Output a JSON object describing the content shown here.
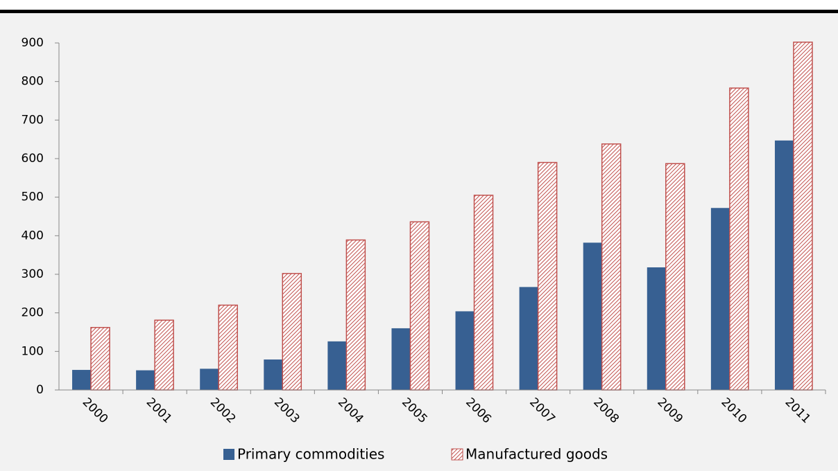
{
  "chart_data": {
    "type": "bar",
    "categories": [
      "2000",
      "2001",
      "2002",
      "2003",
      "2004",
      "2005",
      "2006",
      "2007",
      "2008",
      "2009",
      "2010",
      "2011"
    ],
    "series": [
      {
        "name": "Primary commodities",
        "color": "#376092",
        "hatch": false,
        "values": [
          52,
          51,
          55,
          79,
          126,
          160,
          204,
          267,
          382,
          318,
          472,
          647
        ]
      },
      {
        "name": "Manufactured goods",
        "color": "#c0504d",
        "hatch": true,
        "values": [
          162,
          181,
          220,
          302,
          389,
          436,
          505,
          590,
          638,
          587,
          783,
          902
        ]
      }
    ],
    "ylim": [
      0,
      900
    ],
    "yticks": [
      0,
      100,
      200,
      300,
      400,
      500,
      600,
      700,
      800,
      900
    ],
    "grid": false,
    "legend": "bottom"
  }
}
